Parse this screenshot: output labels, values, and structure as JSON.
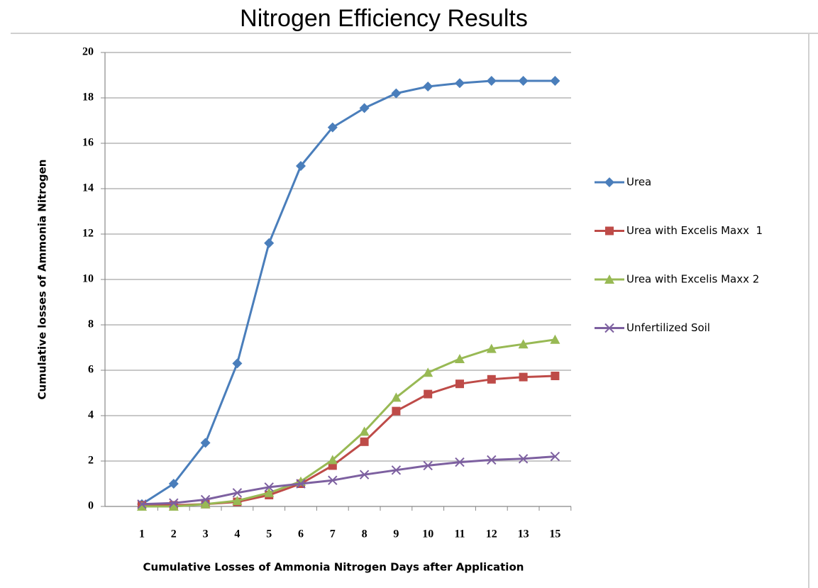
{
  "chart_data": {
    "type": "line",
    "title": "Nitrogen Efficiency Results",
    "x_label": "Cumulative Losses of Ammonia Nitrogen Days after Application",
    "y_label": "Cumulative losses of Ammonia Nitrogen",
    "categories": [
      "1",
      "2",
      "3",
      "4",
      "5",
      "6",
      "7",
      "8",
      "9",
      "10",
      "11",
      "12",
      "13",
      "15"
    ],
    "ylim": [
      0,
      20
    ],
    "yticks": [
      0,
      2,
      4,
      6,
      8,
      10,
      12,
      14,
      16,
      18,
      20
    ],
    "grid": true,
    "legend": "right",
    "series": [
      {
        "name": "Urea",
        "color": "#4a7ebb",
        "marker": "diamond",
        "values": [
          0.1,
          1.0,
          2.8,
          6.3,
          11.6,
          15.0,
          16.7,
          17.55,
          18.2,
          18.5,
          18.65,
          18.75,
          18.75,
          18.75
        ]
      },
      {
        "name": "Urea with Excelis Maxx  1",
        "color": "#be4b48",
        "marker": "square",
        "values": [
          0.05,
          0.05,
          0.1,
          0.2,
          0.5,
          1.0,
          1.8,
          2.85,
          4.2,
          4.95,
          5.4,
          5.6,
          5.7,
          5.75
        ]
      },
      {
        "name": "Urea with Excelis Maxx 2",
        "color": "#98b954",
        "marker": "triangle",
        "values": [
          0,
          0,
          0.1,
          0.25,
          0.6,
          1.1,
          2.05,
          3.3,
          4.8,
          5.9,
          6.5,
          6.95,
          7.15,
          7.35
        ]
      },
      {
        "name": "Unfertilized Soil",
        "color": "#7d60a0",
        "marker": "cross",
        "values": [
          0.1,
          0.15,
          0.3,
          0.6,
          0.85,
          1.0,
          1.15,
          1.4,
          1.6,
          1.8,
          1.95,
          2.05,
          2.1,
          2.2
        ]
      }
    ]
  }
}
